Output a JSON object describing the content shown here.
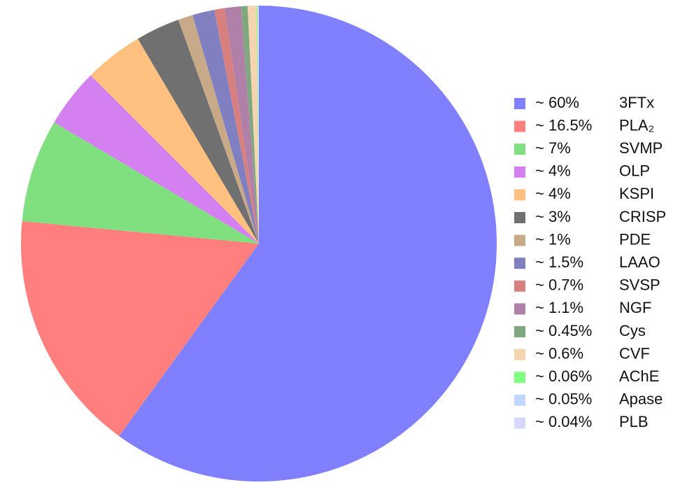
{
  "chart_data": {
    "type": "pie",
    "categories": [
      "3FTx",
      "PLA₂",
      "SVMP",
      "OLP",
      "KSPI",
      "CRISP",
      "PDE",
      "LAAO",
      "SVSP",
      "NGF",
      "Cys",
      "CVF",
      "AChE",
      "Apase",
      "PLB"
    ],
    "values": [
      60,
      16.5,
      7,
      4,
      4,
      3,
      1,
      1.5,
      0.7,
      1.1,
      0.45,
      0.6,
      0.06,
      0.05,
      0.04
    ],
    "value_labels": [
      "~ 60%",
      "~ 16.5%",
      "~ 7%",
      "~ 4%",
      "~ 4%",
      "~ 3%",
      "~ 1%",
      "~ 1.5%",
      "~ 0.7%",
      "~ 1.1%",
      "~ 0.45%",
      "~ 0.6%",
      "~ 0.06%",
      "~ 0.05%",
      "~ 0.04%"
    ],
    "colors": [
      "#8080ff",
      "#ff7f7f",
      "#80e080",
      "#d580f0",
      "#ffc080",
      "#707070",
      "#c8aa88",
      "#8080c0",
      "#d88080",
      "#b080a8",
      "#80a880",
      "#f5d5b0",
      "#80ff80",
      "#c0d8ff",
      "#d8d8ff"
    ],
    "legend": "right"
  }
}
